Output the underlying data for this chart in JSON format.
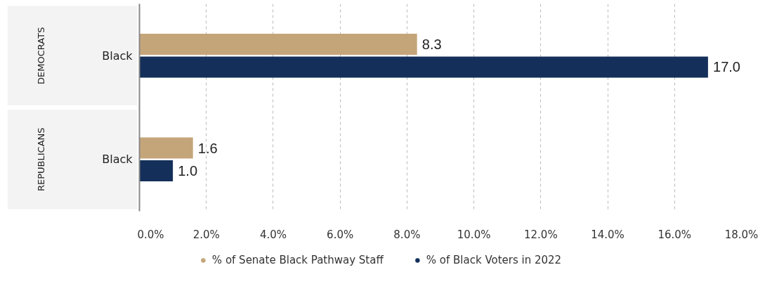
{
  "chart_data": {
    "type": "bar",
    "orientation": "horizontal",
    "categories": [
      "Black",
      "Black"
    ],
    "annotations": [
      "DEMOCRATS",
      "REPUBLICANS"
    ],
    "series": [
      {
        "name": "% of Senate Black Pathway Staff",
        "color": "#c4a57a",
        "values": [
          8.3,
          1.6
        ],
        "value_labels": [
          "8.3",
          "1.6"
        ]
      },
      {
        "name": "% of Black Voters in 2022",
        "color": "#14305a",
        "values": [
          17.0,
          1.0
        ],
        "value_labels": [
          "17.0",
          "1.0"
        ]
      }
    ],
    "xlim": [
      0,
      18
    ],
    "xticks": [
      {
        "value": 0,
        "label": "0.0%"
      },
      {
        "value": 2,
        "label": "2.0%"
      },
      {
        "value": 4,
        "label": "4.0%"
      },
      {
        "value": 6,
        "label": "6.0%"
      },
      {
        "value": 8,
        "label": "8.0%"
      },
      {
        "value": 10,
        "label": "10.0%"
      },
      {
        "value": 12,
        "label": "12.0%"
      },
      {
        "value": 14,
        "label": "14.0%"
      },
      {
        "value": 16,
        "label": "16.0%"
      },
      {
        "value": 18,
        "label": "18.0%"
      }
    ],
    "grid": "x",
    "legend": "bottom"
  }
}
